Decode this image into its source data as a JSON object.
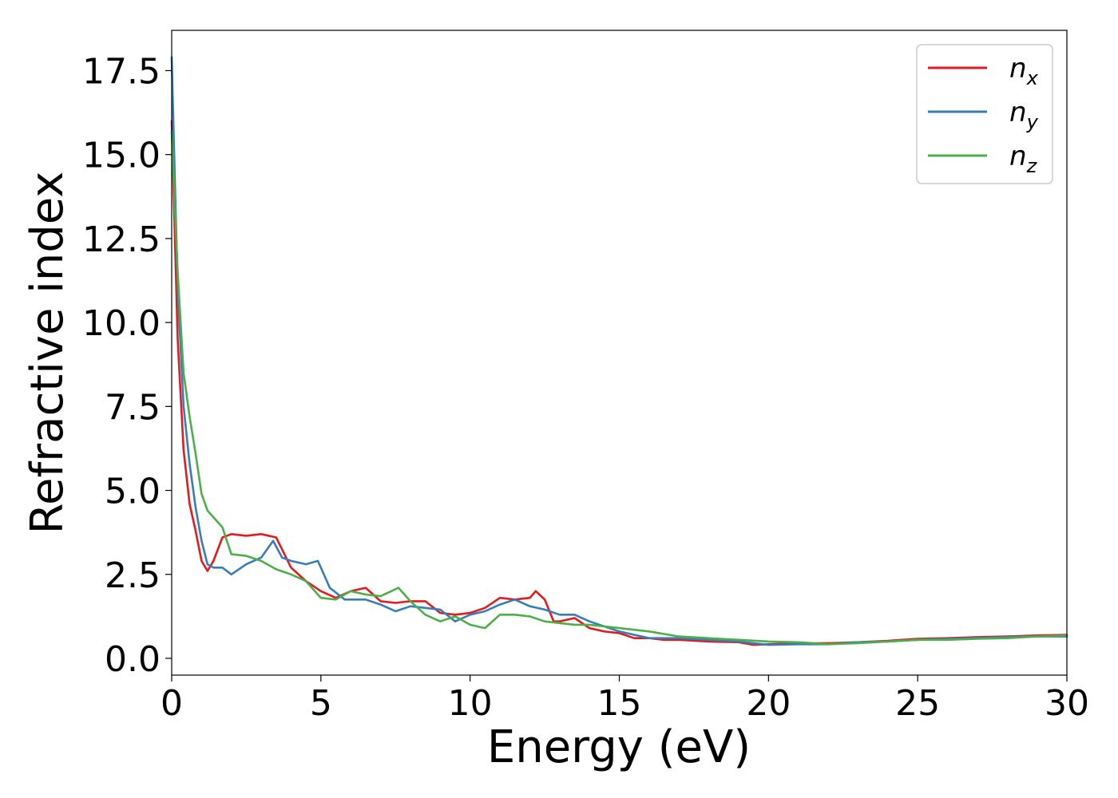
{
  "chart_data": {
    "type": "line",
    "title": "",
    "xlabel": "Energy (eV)",
    "ylabel": "Refractive index",
    "xlim": [
      0,
      30
    ],
    "ylim": [
      -0.5,
      18.7
    ],
    "xticks": [
      0,
      5,
      10,
      15,
      20,
      25,
      30
    ],
    "yticks": [
      0.0,
      2.5,
      5.0,
      7.5,
      10.0,
      12.5,
      15.0,
      17.5
    ],
    "grid": false,
    "legend_position": "top-right",
    "series": [
      {
        "name": "n",
        "subscript": "x",
        "color": "#e41a1c",
        "x": [
          0,
          0.2,
          0.4,
          0.6,
          0.8,
          1.0,
          1.2,
          1.4,
          1.7,
          2.0,
          2.5,
          3.0,
          3.5,
          4.0,
          4.5,
          5.0,
          5.5,
          6.0,
          6.5,
          7.0,
          7.5,
          8.0,
          8.5,
          9.0,
          9.5,
          10.0,
          10.5,
          11.0,
          11.5,
          12.0,
          12.2,
          12.5,
          12.8,
          13.0,
          13.5,
          14.0,
          14.5,
          15.0,
          15.5,
          16.0,
          16.5,
          17.0,
          18.0,
          19.0,
          19.5,
          20.0,
          21.0,
          22.0,
          23.0,
          24.0,
          25.0,
          26.0,
          27.0,
          28.0,
          29.0,
          30.0
        ],
        "values": [
          16.0,
          9.5,
          6.2,
          4.6,
          3.8,
          2.9,
          2.6,
          2.9,
          3.6,
          3.7,
          3.65,
          3.7,
          3.6,
          2.7,
          2.3,
          2.0,
          1.8,
          2.0,
          2.1,
          1.7,
          1.65,
          1.7,
          1.7,
          1.35,
          1.3,
          1.35,
          1.5,
          1.8,
          1.75,
          1.8,
          2.0,
          1.75,
          1.1,
          1.1,
          1.2,
          0.9,
          0.8,
          0.75,
          0.6,
          0.6,
          0.55,
          0.55,
          0.5,
          0.48,
          0.4,
          0.42,
          0.45,
          0.45,
          0.48,
          0.52,
          0.58,
          0.6,
          0.63,
          0.65,
          0.68,
          0.7
        ]
      },
      {
        "name": "n",
        "subscript": "y",
        "color": "#377eb8",
        "x": [
          0,
          0.2,
          0.4,
          0.6,
          0.8,
          1.0,
          1.2,
          1.4,
          1.7,
          2.0,
          2.5,
          3.0,
          3.4,
          3.7,
          4.0,
          4.5,
          4.9,
          5.3,
          5.8,
          6.5,
          7.0,
          7.5,
          8.0,
          8.5,
          9.0,
          9.5,
          10.0,
          10.5,
          11.0,
          11.5,
          12.0,
          12.5,
          13.0,
          13.5,
          14.0,
          14.5,
          15.0,
          16.0,
          17.0,
          18.0,
          19.0,
          20.0,
          21.0,
          22.0,
          23.0,
          24.0,
          25.0,
          26.0,
          27.0,
          28.0,
          29.0,
          30.0
        ],
        "values": [
          17.9,
          11.0,
          7.5,
          5.8,
          4.5,
          3.5,
          2.8,
          2.7,
          2.7,
          2.5,
          2.8,
          3.0,
          3.5,
          3.0,
          2.9,
          2.8,
          2.9,
          2.1,
          1.75,
          1.75,
          1.6,
          1.4,
          1.55,
          1.5,
          1.45,
          1.1,
          1.3,
          1.4,
          1.6,
          1.75,
          1.55,
          1.45,
          1.3,
          1.3,
          1.1,
          0.95,
          0.8,
          0.6,
          0.6,
          0.55,
          0.5,
          0.4,
          0.42,
          0.42,
          0.48,
          0.5,
          0.55,
          0.58,
          0.6,
          0.63,
          0.65,
          0.65
        ]
      },
      {
        "name": "n",
        "subscript": "z",
        "color": "#4daf4a",
        "x": [
          0,
          0.2,
          0.4,
          0.6,
          0.8,
          1.0,
          1.2,
          1.4,
          1.7,
          2.0,
          2.5,
          3.0,
          3.5,
          4.0,
          4.5,
          5.0,
          5.5,
          6.0,
          6.5,
          7.0,
          7.6,
          8.0,
          8.5,
          9.0,
          9.5,
          10.0,
          10.5,
          11.0,
          11.5,
          12.0,
          12.5,
          13.0,
          13.5,
          14.0,
          14.5,
          15.0,
          16.0,
          17.0,
          18.0,
          19.0,
          20.0,
          21.0,
          22.0,
          23.0,
          24.0,
          25.0,
          26.0,
          27.0,
          28.0,
          29.0,
          30.0
        ],
        "values": [
          15.7,
          11.5,
          8.5,
          7.2,
          6.1,
          4.9,
          4.4,
          4.2,
          3.9,
          3.1,
          3.05,
          2.9,
          2.65,
          2.5,
          2.3,
          1.8,
          1.75,
          2.0,
          1.9,
          1.85,
          2.1,
          1.7,
          1.3,
          1.1,
          1.25,
          1.0,
          0.9,
          1.3,
          1.3,
          1.25,
          1.1,
          1.05,
          1.0,
          1.0,
          0.95,
          0.9,
          0.8,
          0.65,
          0.6,
          0.55,
          0.5,
          0.48,
          0.42,
          0.45,
          0.5,
          0.55,
          0.55,
          0.58,
          0.6,
          0.65,
          0.68
        ]
      }
    ]
  }
}
